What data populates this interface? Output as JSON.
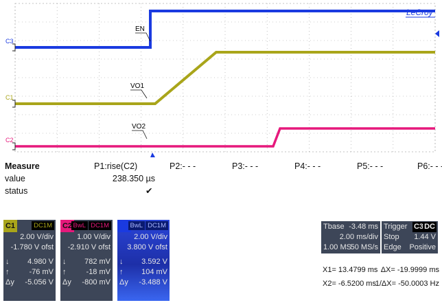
{
  "brand": "LeCroy",
  "trace_labels": {
    "en": "EN",
    "vo1": "VO1",
    "vo2": "VO2"
  },
  "channel_markers": [
    "C3",
    "C1",
    "C2"
  ],
  "colors": {
    "c1": "#a9a51a",
    "c2": "#e6197c",
    "c3": "#1a3ae0",
    "grid": "#808080",
    "panel": "#3d4658"
  },
  "measure": {
    "header": "Measure",
    "row_labels": [
      "value",
      "status"
    ],
    "p1_name": "P1:rise(C2)",
    "p1_value": "238.350 µs",
    "p1_status": "✔",
    "others": [
      "P2:- - -",
      "P3:- - -",
      "P4:- - -",
      "P5:- - -",
      "P6:- - -"
    ]
  },
  "channels": [
    {
      "id": "C1",
      "coupling": "DC1M",
      "scale": "2.00 V/div",
      "offset": "-1.780 V ofst",
      "readouts": [
        {
          "sym": "↓",
          "val": "4.980 V"
        },
        {
          "sym": "↑",
          "val": "-76 mV"
        },
        {
          "sym": "Δy",
          "val": "-5.056 V"
        }
      ]
    },
    {
      "id": "C2",
      "bwl": "BwL",
      "coupling": "DC1M",
      "scale": "1.00 V/div",
      "offset": "-2.910 V ofst",
      "readouts": [
        {
          "sym": "↓",
          "val": "782 mV"
        },
        {
          "sym": "↑",
          "val": "-18 mV"
        },
        {
          "sym": "Δy",
          "val": "-800 mV"
        }
      ]
    },
    {
      "id": "C3",
      "bwl": "BwL",
      "coupling": "DC1M",
      "scale": "2.00 V/div",
      "offset": "3.800 V ofst",
      "readouts": [
        {
          "sym": "↓",
          "val": "3.592 V"
        },
        {
          "sym": "↑",
          "val": "104 mV"
        },
        {
          "sym": "Δy",
          "val": "-3.488 V"
        }
      ]
    }
  ],
  "timebase": {
    "label": "Tbase",
    "offset": "-3.48 ms",
    "div": "2.00 ms/div",
    "samples": "1.00 MS",
    "rate": "50 MS/s"
  },
  "trigger": {
    "label": "Trigger",
    "source": "C3",
    "coupling": "DC",
    "mode": "Stop",
    "level": "1.44 V",
    "type": "Edge",
    "slope": "Positive"
  },
  "cursors": {
    "x1": "X1= 13.4799 ms",
    "dx": "ΔX= -19.9999 ms",
    "x2": "X2= -6.5200 ms",
    "inv_dx": "1/ΔX= -50.0003 Hz"
  }
}
